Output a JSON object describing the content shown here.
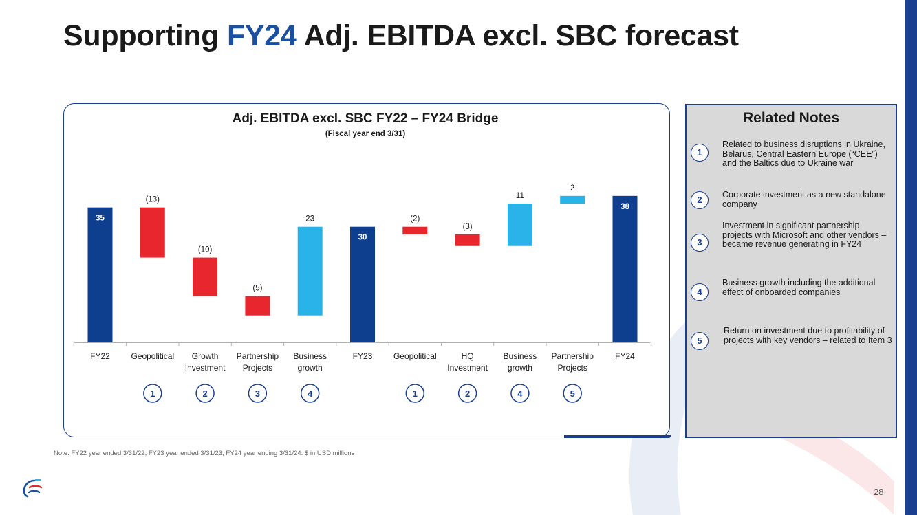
{
  "slide": {
    "title_prefix": "Supporting ",
    "title_accent": "FY24",
    "title_suffix": " Adj. EBITDA excl. SBC forecast",
    "page_number": "28",
    "footnote": "Note:  FY22 year ended 3/31/22, FY23 year ended 3/31/23, FY24 year ending 3/31/24: $ in USD millions"
  },
  "colors": {
    "total": "#0e3f8f",
    "negative": "#e8262d",
    "positive": "#29b3e8",
    "accent": "#1b4fa0"
  },
  "chart_data": {
    "type": "waterfall",
    "title": "Adj. EBITDA excl. SBC FY22 – FY24 Bridge",
    "subtitle": "(Fiscal year end 3/31)",
    "unit": "USD millions",
    "ylim": [
      0,
      40
    ],
    "categories": [
      "FY22",
      "Geopolitical",
      "Growth Investment",
      "Partnership Projects",
      "Business growth",
      "FY23",
      "Geopolitical",
      "HQ Investment",
      "Business growth",
      "Partnership Projects",
      "FY24"
    ],
    "values": [
      35,
      -13,
      -10,
      -5,
      23,
      30,
      -2,
      -3,
      11,
      2,
      38
    ],
    "kinds": [
      "total",
      "negative",
      "negative",
      "negative",
      "positive",
      "total",
      "negative",
      "negative",
      "positive",
      "positive",
      "total"
    ],
    "value_labels": [
      "35",
      "(13)",
      "(10)",
      "(5)",
      "23",
      "30",
      "(2)",
      "(3)",
      "11",
      "2",
      "38"
    ],
    "note_refs": [
      "",
      "1",
      "2",
      "3",
      "4",
      "",
      "1",
      "2",
      "4",
      "5",
      ""
    ]
  },
  "notes": {
    "title": "Related Notes",
    "items": [
      {
        "number": "1",
        "text": "Related to business disruptions in Ukraine, Belarus, Central Eastern Europe (“CEE”) and the Baltics due to Ukraine war"
      },
      {
        "number": "2",
        "text": "Corporate investment as a new standalone company"
      },
      {
        "number": "3",
        "text": "Investment in significant partnership projects with Microsoft and other vendors – became revenue generating in FY24"
      },
      {
        "number": "4",
        "text": "Business growth including the additional effect of onboarded companies"
      },
      {
        "number": "5",
        "text": "Return on investment due to profitability of projects with key vendors – related to Item 3"
      }
    ]
  },
  "icons": {
    "logo": "company-logo-icon"
  }
}
